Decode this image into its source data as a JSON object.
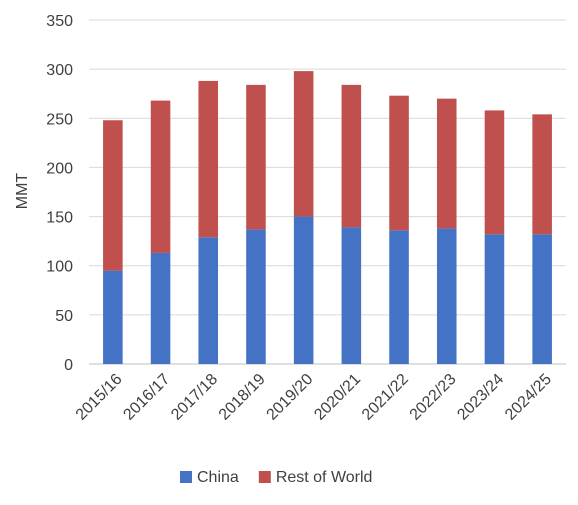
{
  "chart_data": {
    "type": "bar",
    "stacked": true,
    "categories": [
      "2015/16",
      "2016/17",
      "2017/18",
      "2018/19",
      "2019/20",
      "2020/21",
      "2021/22",
      "2022/23",
      "2023/24",
      "2024/25"
    ],
    "series": [
      {
        "name": "China",
        "color": "#4472C4",
        "values": [
          95,
          113,
          129,
          137,
          150,
          139,
          136,
          138,
          132,
          132
        ]
      },
      {
        "name": "Rest of World",
        "color": "#C0504D",
        "values": [
          153,
          155,
          159,
          147,
          148,
          145,
          137,
          132,
          126,
          122
        ]
      }
    ],
    "title": "",
    "xlabel": "",
    "ylabel": "MMT",
    "ylim": [
      0,
      350
    ],
    "yticks": [
      0,
      50,
      100,
      150,
      200,
      250,
      300,
      350
    ],
    "grid": true,
    "legend": "bottom"
  }
}
